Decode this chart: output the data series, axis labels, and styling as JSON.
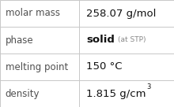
{
  "rows": [
    {
      "label": "molar mass",
      "value_main": "258.07 g/mol",
      "value_sup": "",
      "value_small": ""
    },
    {
      "label": "phase",
      "value_main": "solid",
      "value_sup": "",
      "value_small": "(at STP)"
    },
    {
      "label": "melting point",
      "value_main": "150 °C",
      "value_sup": "",
      "value_small": ""
    },
    {
      "label": "density",
      "value_main": "1.815 g/cm",
      "value_sup": "3",
      "value_small": ""
    }
  ],
  "bg_color": "#ffffff",
  "border_color": "#c8c8c8",
  "label_color": "#505050",
  "value_color": "#111111",
  "small_color": "#888888",
  "col_split": 0.455,
  "label_fontsize": 8.5,
  "value_fontsize": 9.5,
  "small_fontsize": 6.5,
  "sup_fontsize": 6.0
}
